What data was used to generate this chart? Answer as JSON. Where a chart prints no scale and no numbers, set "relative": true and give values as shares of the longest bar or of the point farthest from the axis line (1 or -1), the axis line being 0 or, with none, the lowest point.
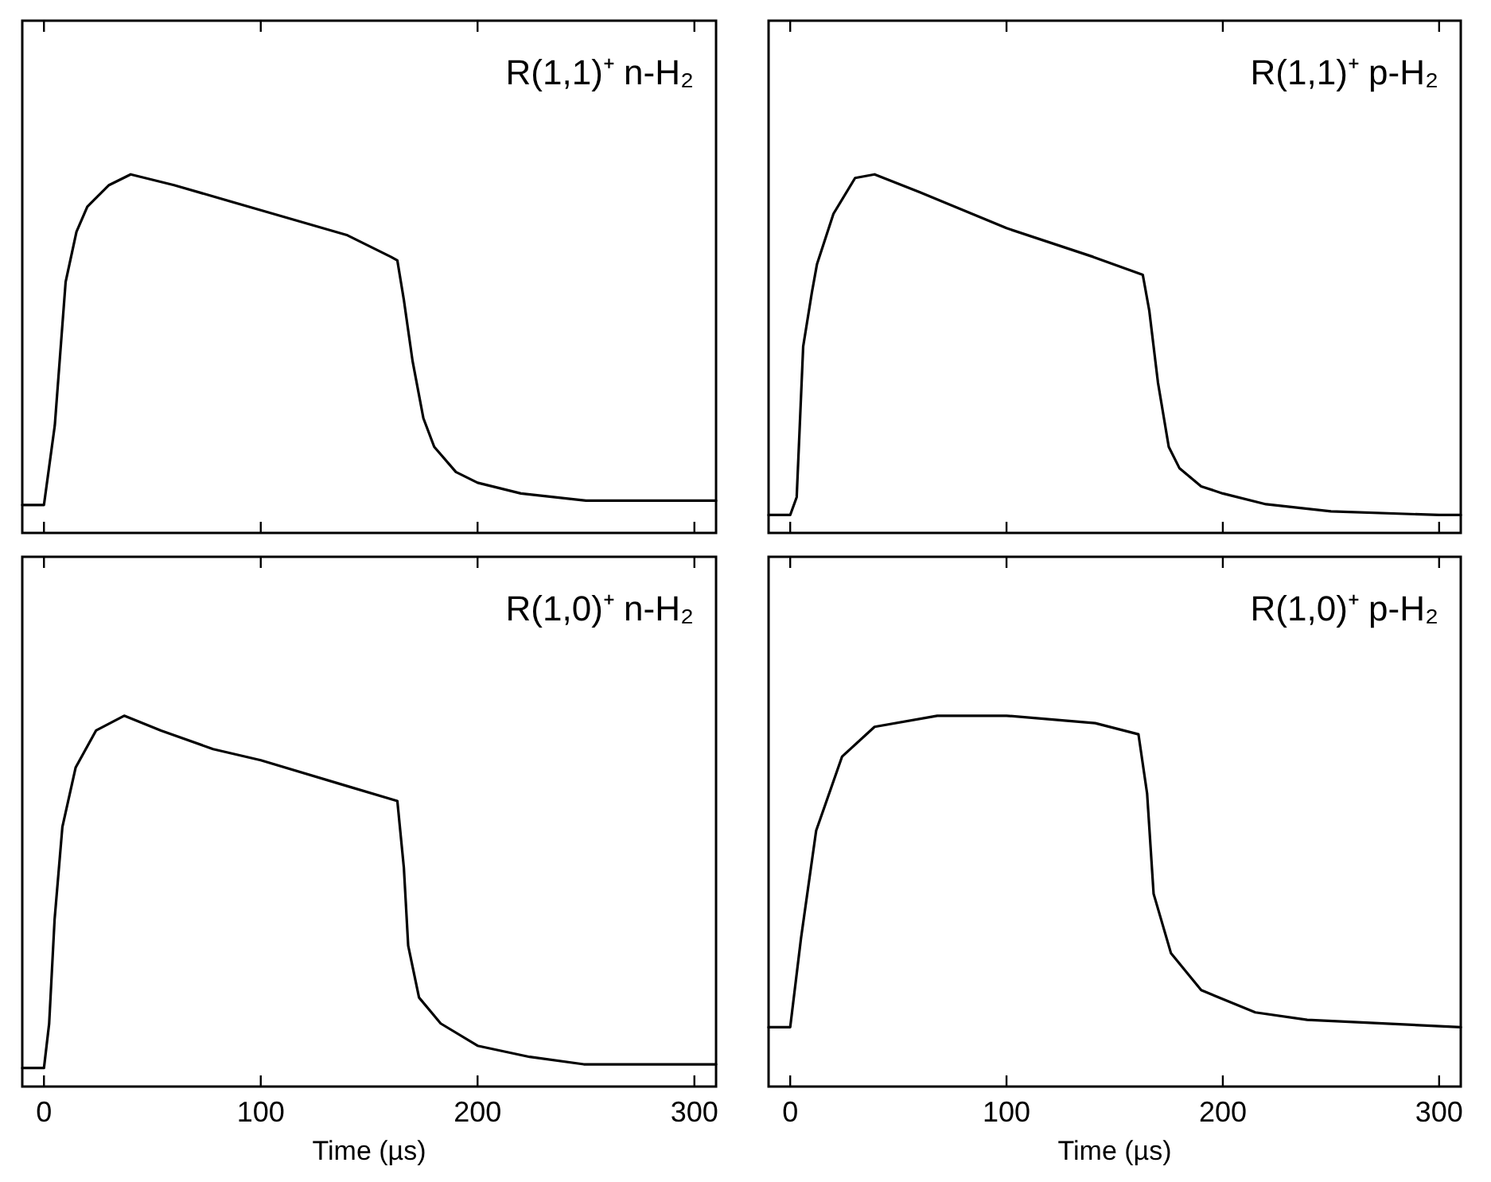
{
  "chart_data": [
    {
      "type": "line",
      "title": "R(1,1)⁺ n-H₂",
      "relative": true,
      "xlim": [
        -10,
        310
      ],
      "xticks": [
        0,
        100,
        200,
        300
      ],
      "tick_labels": false,
      "marker": "none",
      "line_style": "solid",
      "series": [
        {
          "color": "#000000",
          "x": [
            -10,
            0,
            5,
            10,
            15,
            20,
            30,
            40,
            60,
            100,
            140,
            160,
            163,
            166,
            170,
            175,
            180,
            190,
            200,
            220,
            250,
            300,
            310
          ],
          "values": [
            0.078,
            0.078,
            0.3,
            0.7,
            0.84,
            0.91,
            0.97,
            1.0,
            0.97,
            0.9,
            0.83,
            0.77,
            0.76,
            0.65,
            0.48,
            0.32,
            0.24,
            0.17,
            0.14,
            0.11,
            0.09,
            0.09,
            0.09
          ]
        }
      ]
    },
    {
      "type": "line",
      "title": "R(1,1)⁺ p-H₂",
      "relative": true,
      "xlim": [
        -10,
        310
      ],
      "xticks": [
        0,
        100,
        200,
        300
      ],
      "tick_labels": false,
      "marker": "none",
      "line_style": "solid",
      "series": [
        {
          "color": "#000000",
          "x": [
            -10,
            0,
            3,
            6,
            10,
            12.4,
            20,
            30,
            39,
            60,
            100,
            140,
            163,
            166,
            170,
            175,
            180,
            190,
            200,
            220,
            250,
            300,
            310
          ],
          "values": [
            0.05,
            0.05,
            0.1,
            0.52,
            0.67,
            0.75,
            0.89,
            0.99,
            1.0,
            0.95,
            0.85,
            0.77,
            0.72,
            0.62,
            0.42,
            0.24,
            0.18,
            0.13,
            0.11,
            0.08,
            0.06,
            0.05,
            0.05
          ]
        }
      ]
    },
    {
      "type": "line",
      "title": "R(1,0)⁺ n-H₂",
      "xlabel": "Time (µs)",
      "relative": true,
      "xlim": [
        -10,
        310
      ],
      "xticks": [
        0,
        100,
        200,
        300
      ],
      "tick_labels": "x",
      "marker": "none",
      "line_style": "solid",
      "series": [
        {
          "color": "#000000",
          "x": [
            -10,
            0,
            2.4,
            4.9,
            8.5,
            14.6,
            24,
            37,
            54,
            78,
            100,
            140,
            163,
            166,
            168,
            173,
            183,
            200,
            224,
            249,
            310
          ],
          "values": [
            0.05,
            0.05,
            0.17,
            0.45,
            0.7,
            0.86,
            0.96,
            1.0,
            0.96,
            0.91,
            0.88,
            0.81,
            0.77,
            0.59,
            0.38,
            0.24,
            0.17,
            0.11,
            0.08,
            0.06,
            0.06
          ]
        }
      ]
    },
    {
      "type": "line",
      "title": "R(1,0)⁺ p-H₂",
      "xlabel": "Time (µs)",
      "relative": true,
      "xlim": [
        -10,
        310
      ],
      "xticks": [
        0,
        100,
        200,
        300
      ],
      "tick_labels": "x",
      "marker": "none",
      "line_style": "solid",
      "series": [
        {
          "color": "#000000",
          "x": [
            -10,
            0,
            5,
            12,
            24,
            39,
            68,
            100,
            141,
            161,
            165,
            168,
            176,
            190,
            215,
            239,
            310
          ],
          "values": [
            0.16,
            0.16,
            0.4,
            0.69,
            0.89,
            0.97,
            1.0,
            1.0,
            0.98,
            0.95,
            0.79,
            0.52,
            0.36,
            0.26,
            0.2,
            0.18,
            0.16
          ]
        }
      ]
    }
  ]
}
